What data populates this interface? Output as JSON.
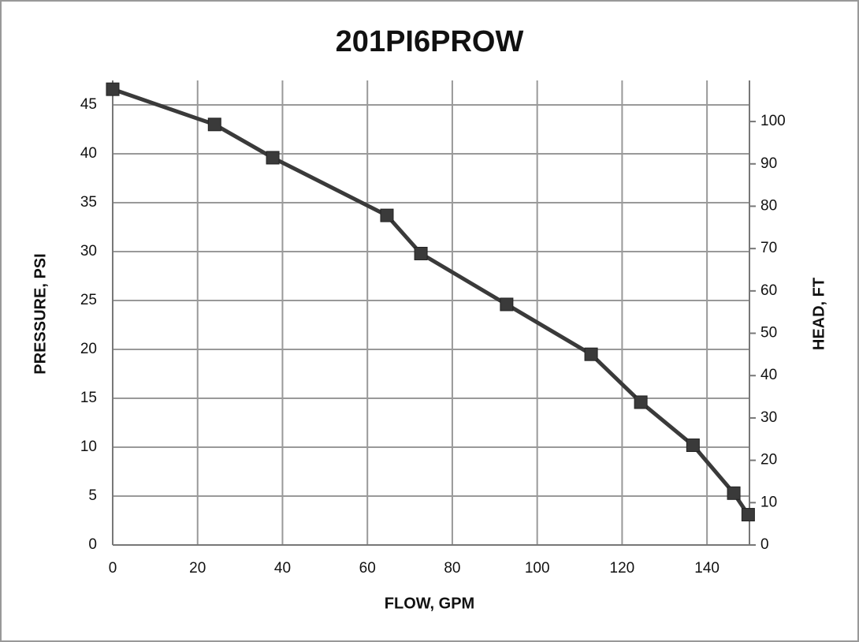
{
  "chart_data": {
    "type": "line",
    "title": "201PI6PROW",
    "x_label": "FLOW, GPM",
    "y_label": "PRESSURE, PSI",
    "y2_label": "HEAD, FT",
    "x": [
      0,
      24.0,
      37.7,
      64.6,
      72.6,
      92.8,
      112.7,
      124.4,
      136.7,
      146.3,
      149.7
    ],
    "series": [
      {
        "color": "#3a3a3a",
        "values": [
          46.6,
          43.0,
          39.6,
          33.7,
          29.8,
          24.6,
          19.5,
          14.6,
          10.2,
          5.3,
          3.1
        ]
      }
    ],
    "xlim": [
      0,
      150
    ],
    "xticks": [
      0,
      20,
      40,
      60,
      80,
      100,
      120,
      140
    ],
    "ylim": [
      0,
      47.5
    ],
    "yticks": [
      0,
      5,
      10,
      15,
      20,
      25,
      30,
      35,
      40,
      45
    ],
    "y2lim": [
      0,
      109.7
    ],
    "y2ticks": [
      0,
      10,
      20,
      30,
      40,
      50,
      60,
      70,
      80,
      90,
      100
    ],
    "grid": true
  }
}
